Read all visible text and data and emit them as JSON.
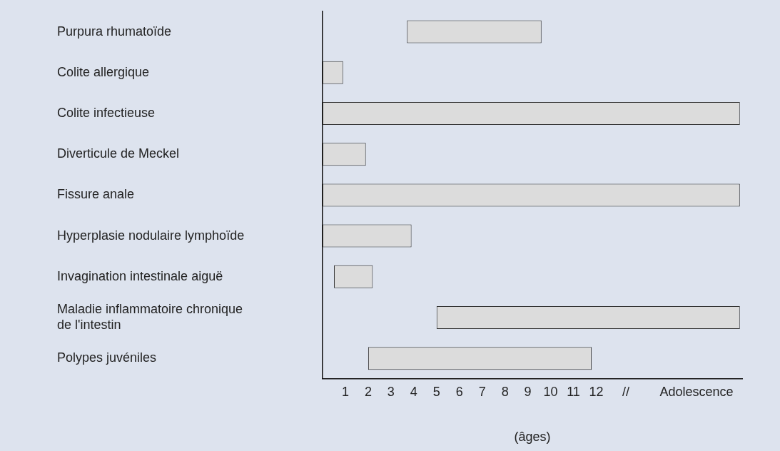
{
  "chart_data": {
    "type": "bar",
    "orientation": "horizontal",
    "xlabel": "(âges)",
    "categories": [
      "Purpura rhumatoïde",
      "Colite allergique",
      "Colite infectieuse",
      "Diverticule de Meckel",
      "Fissure anale",
      "Hyperplasie nodulaire lymphoïde",
      "Invagination intestinale aiguë",
      "Maladie inflammatoire chronique de l'intestin",
      "Polypes juvéniles"
    ],
    "base": [
      3.7,
      0,
      0,
      0,
      0,
      0,
      0.5,
      5.0,
      2.0
    ],
    "values": [
      5.9,
      0.9,
      18.3,
      1.9,
      18.3,
      3.9,
      1.7,
      13.3,
      9.8
    ],
    "color": "#dcdcdc",
    "xlim": [
      0,
      18.4
    ],
    "xticks": [
      1,
      2,
      3,
      4,
      5,
      6,
      7,
      8,
      9,
      10,
      11,
      12,
      {
        "value": 13.3,
        "label": "//"
      },
      {
        "value": 16.4,
        "label": "Adolescence"
      }
    ],
    "grid": false
  }
}
